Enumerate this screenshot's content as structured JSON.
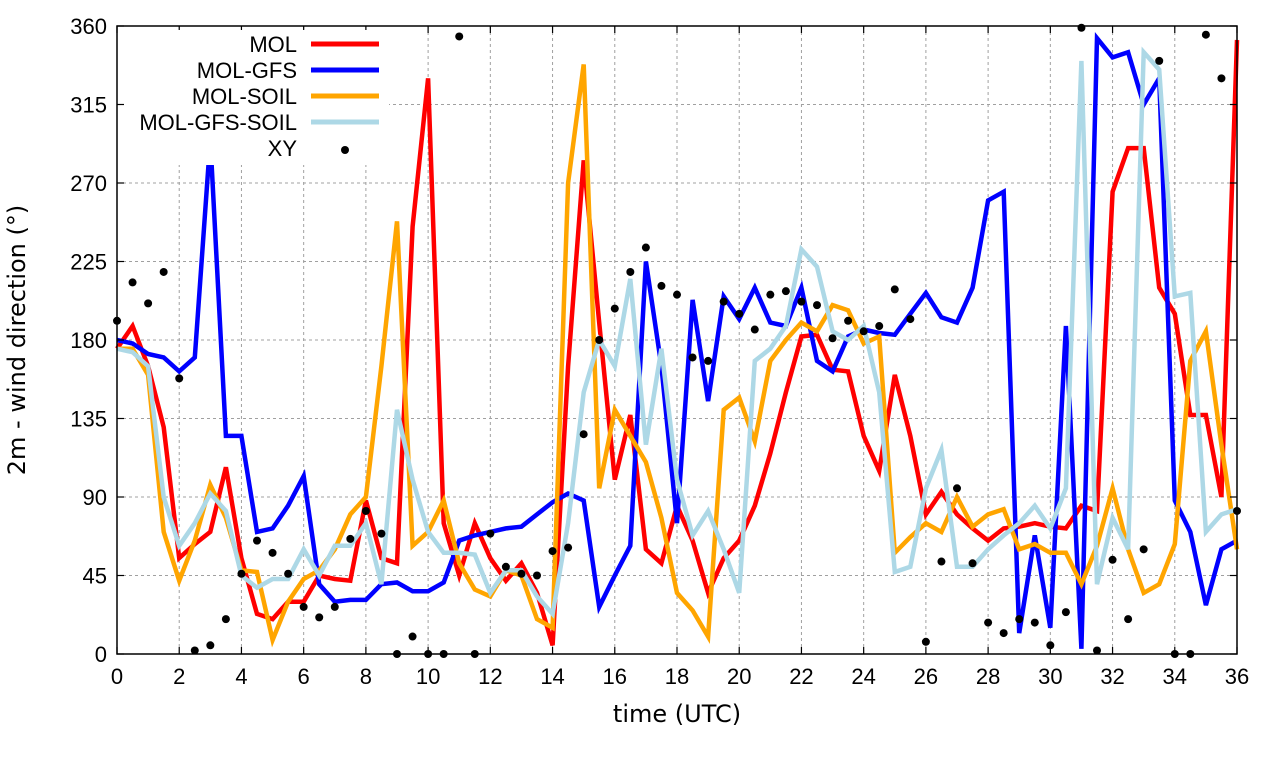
{
  "chart_data": {
    "type": "line",
    "title": "",
    "xlabel": "time (UTC)",
    "ylabel": "2m - wind direction (°)",
    "xlim": [
      0,
      36
    ],
    "ylim": [
      0,
      360
    ],
    "grid": true,
    "legend_position": "top-left",
    "x_ticks": [
      "0",
      "2",
      "4",
      "6",
      "8",
      "10",
      "12",
      "14",
      "16",
      "18",
      "20",
      "22",
      "24",
      "26",
      "28",
      "30",
      "32",
      "34",
      "36"
    ],
    "y_ticks": [
      "0",
      "45",
      "90",
      "135",
      "180",
      "225",
      "270",
      "315",
      "360"
    ],
    "x_tick_values": [
      0,
      2,
      4,
      6,
      8,
      10,
      12,
      14,
      16,
      18,
      20,
      22,
      24,
      26,
      28,
      30,
      32,
      34,
      36
    ],
    "y_tick_values": [
      0,
      45,
      90,
      135,
      180,
      225,
      270,
      315,
      360
    ],
    "x": [
      0,
      0.5,
      1,
      1.5,
      2,
      2.5,
      3,
      3.5,
      4,
      4.5,
      5,
      5.5,
      6,
      6.5,
      7,
      7.5,
      8,
      8.5,
      9,
      9.5,
      10,
      10.5,
      11,
      11.5,
      12,
      12.5,
      13,
      13.5,
      14,
      14.5,
      15,
      15.5,
      16,
      16.5,
      17,
      17.5,
      18,
      18.5,
      19,
      19.5,
      20,
      20.5,
      21,
      21.5,
      22,
      22.5,
      23,
      23.5,
      24,
      24.5,
      25,
      25.5,
      26,
      26.5,
      27,
      27.5,
      28,
      28.5,
      29,
      29.5,
      30,
      30.5,
      31,
      31.5,
      32,
      32.5,
      33,
      33.5,
      34,
      34.5,
      35,
      35.5,
      36
    ],
    "series": [
      {
        "name": "MOL",
        "color": "#ff0000",
        "style": "line",
        "values": [
          175,
          188,
          165,
          130,
          55,
          63,
          70,
          107,
          55,
          23,
          20,
          30,
          30,
          45,
          43,
          42,
          88,
          55,
          52,
          245,
          330,
          75,
          45,
          75,
          55,
          42,
          52,
          35,
          5,
          165,
          283,
          190,
          100,
          137,
          60,
          52,
          85,
          65,
          35,
          55,
          65,
          85,
          115,
          150,
          182,
          183,
          163,
          162,
          125,
          105,
          160,
          125,
          80,
          93,
          80,
          72,
          65,
          72,
          73,
          75,
          73,
          72,
          85,
          82,
          265,
          290,
          290,
          210,
          195,
          137,
          137,
          90,
          352
        ]
      },
      {
        "name": "MOL-GFS",
        "color": "#0000ff",
        "style": "line",
        "values": [
          180,
          178,
          172,
          170,
          162,
          170,
          295,
          125,
          125,
          70,
          72,
          85,
          102,
          40,
          30,
          31,
          31,
          40,
          41,
          36,
          36,
          41,
          65,
          68,
          70,
          72,
          73,
          80,
          87,
          92,
          88,
          27,
          45,
          62,
          225,
          165,
          75,
          203,
          145,
          205,
          192,
          210,
          190,
          188,
          210,
          168,
          162,
          182,
          186,
          184,
          183,
          195,
          207,
          193,
          190,
          210,
          260,
          265,
          12,
          68,
          15,
          188,
          3,
          353,
          342,
          345,
          315,
          330,
          88,
          70,
          28,
          60,
          65
        ]
      },
      {
        "name": "MOL-SOIL",
        "color": "#ffa500",
        "style": "line",
        "values": [
          175,
          175,
          160,
          70,
          42,
          65,
          97,
          78,
          48,
          47,
          8,
          30,
          43,
          48,
          60,
          80,
          90,
          165,
          248,
          62,
          70,
          88,
          52,
          37,
          33,
          48,
          45,
          20,
          15,
          270,
          338,
          95,
          140,
          125,
          110,
          78,
          35,
          25,
          10,
          140,
          147,
          122,
          168,
          180,
          190,
          185,
          200,
          197,
          178,
          182,
          58,
          67,
          75,
          70,
          90,
          73,
          80,
          83,
          60,
          63,
          58,
          58,
          40,
          62,
          95,
          60,
          35,
          40,
          63,
          168,
          185,
          120,
          60
        ]
      },
      {
        "name": "MOL-GFS-SOIL",
        "color": "#add8e6",
        "style": "line",
        "values": [
          175,
          173,
          165,
          90,
          62,
          75,
          92,
          82,
          45,
          38,
          43,
          43,
          60,
          45,
          62,
          62,
          75,
          40,
          140,
          100,
          70,
          58,
          58,
          57,
          35,
          48,
          48,
          33,
          23,
          75,
          150,
          180,
          165,
          215,
          120,
          175,
          100,
          68,
          82,
          60,
          35,
          168,
          175,
          188,
          232,
          222,
          185,
          180,
          188,
          150,
          47,
          50,
          95,
          117,
          50,
          50,
          60,
          68,
          75,
          85,
          72,
          95,
          340,
          40,
          78,
          60,
          345,
          335,
          205,
          207,
          70,
          80,
          83
        ]
      },
      {
        "name": "XY",
        "color": "#000000",
        "style": "points",
        "points": [
          [
            0,
            191
          ],
          [
            0.5,
            213
          ],
          [
            1,
            201
          ],
          [
            1.5,
            219
          ],
          [
            2,
            158
          ],
          [
            2.5,
            2
          ],
          [
            3,
            5
          ],
          [
            3.5,
            20
          ],
          [
            4,
            46
          ],
          [
            4.5,
            65
          ],
          [
            5,
            58
          ],
          [
            5.5,
            46
          ],
          [
            6,
            27
          ],
          [
            6.5,
            21
          ],
          [
            7,
            27
          ],
          [
            7.5,
            66
          ],
          [
            8,
            82
          ],
          [
            8.5,
            69
          ],
          [
            9,
            0
          ],
          [
            9.5,
            10
          ],
          [
            10,
            0
          ],
          [
            10.5,
            0
          ],
          [
            11,
            354
          ],
          [
            11.5,
            0
          ],
          [
            12,
            69
          ],
          [
            12.5,
            50
          ],
          [
            13,
            46
          ],
          [
            13.5,
            45
          ],
          [
            14,
            59
          ],
          [
            14.5,
            61
          ],
          [
            15,
            126
          ],
          [
            15.5,
            180
          ],
          [
            16,
            198
          ],
          [
            16.5,
            219
          ],
          [
            17,
            233
          ],
          [
            17.5,
            211
          ],
          [
            18,
            206
          ],
          [
            18.5,
            170
          ],
          [
            19,
            168
          ],
          [
            19.5,
            202
          ],
          [
            20,
            195
          ],
          [
            20.5,
            186
          ],
          [
            21,
            206
          ],
          [
            21.5,
            208
          ],
          [
            22,
            202
          ],
          [
            22.5,
            200
          ],
          [
            23,
            181
          ],
          [
            23.5,
            191
          ],
          [
            24,
            185
          ],
          [
            24.5,
            188
          ],
          [
            25,
            209
          ],
          [
            25.5,
            192
          ],
          [
            26,
            7
          ],
          [
            26.5,
            53
          ],
          [
            27,
            95
          ],
          [
            27.5,
            52
          ],
          [
            28,
            18
          ],
          [
            28.5,
            12
          ],
          [
            29,
            20
          ],
          [
            29.5,
            18
          ],
          [
            30,
            5
          ],
          [
            30.5,
            24
          ],
          [
            31,
            359
          ],
          [
            31.5,
            2
          ],
          [
            32,
            54
          ],
          [
            32.5,
            20
          ],
          [
            33,
            60
          ],
          [
            33.5,
            340
          ],
          [
            34,
            0
          ],
          [
            34.5,
            0
          ],
          [
            35,
            355
          ],
          [
            35.5,
            330
          ],
          [
            36,
            82
          ]
        ]
      }
    ]
  }
}
